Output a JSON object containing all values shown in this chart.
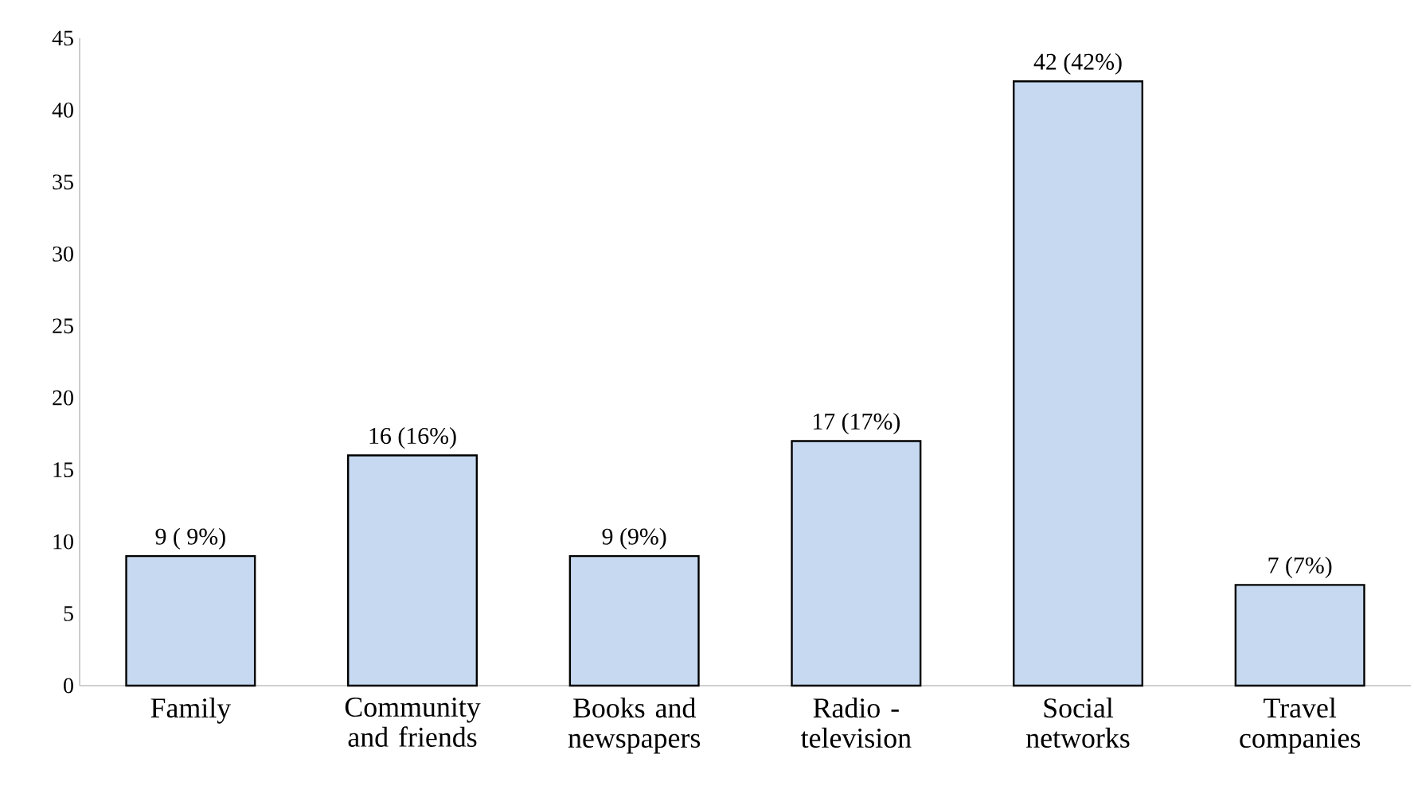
{
  "chart_data": {
    "type": "bar",
    "categories": [
      "Family",
      "Community and friends",
      "Books and newspapers",
      "Radio - television",
      "Social networks",
      "Travel companies"
    ],
    "values": [
      9,
      16,
      9,
      17,
      42,
      7
    ],
    "value_labels": [
      "9 ( 9%)",
      "16 (16%)",
      "9 (9%)",
      "17 (17%)",
      "42 (42%)",
      "7 (7%)"
    ],
    "color": "#c6d9f0",
    "ylim": [
      0,
      45
    ],
    "yticks": [
      0,
      5,
      10,
      15,
      20,
      25,
      30,
      35,
      40,
      45
    ],
    "grid": false
  }
}
